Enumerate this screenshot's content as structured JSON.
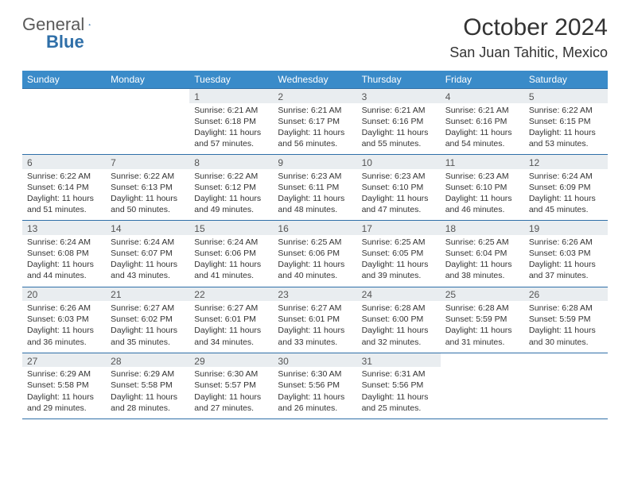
{
  "logo": {
    "general": "General",
    "blue": "Blue"
  },
  "title": "October 2024",
  "location": "San Juan Tahitic, Mexico",
  "colors": {
    "header_bg": "#3a8bc9",
    "rule": "#2f6fa8",
    "numrow_bg": "#e9edf0",
    "text": "#333333"
  },
  "day_names": [
    "Sunday",
    "Monday",
    "Tuesday",
    "Wednesday",
    "Thursday",
    "Friday",
    "Saturday"
  ],
  "weeks": [
    [
      null,
      null,
      {
        "n": "1",
        "sr": "Sunrise: 6:21 AM",
        "ss": "Sunset: 6:18 PM",
        "dl": "Daylight: 11 hours and 57 minutes."
      },
      {
        "n": "2",
        "sr": "Sunrise: 6:21 AM",
        "ss": "Sunset: 6:17 PM",
        "dl": "Daylight: 11 hours and 56 minutes."
      },
      {
        "n": "3",
        "sr": "Sunrise: 6:21 AM",
        "ss": "Sunset: 6:16 PM",
        "dl": "Daylight: 11 hours and 55 minutes."
      },
      {
        "n": "4",
        "sr": "Sunrise: 6:21 AM",
        "ss": "Sunset: 6:16 PM",
        "dl": "Daylight: 11 hours and 54 minutes."
      },
      {
        "n": "5",
        "sr": "Sunrise: 6:22 AM",
        "ss": "Sunset: 6:15 PM",
        "dl": "Daylight: 11 hours and 53 minutes."
      }
    ],
    [
      {
        "n": "6",
        "sr": "Sunrise: 6:22 AM",
        "ss": "Sunset: 6:14 PM",
        "dl": "Daylight: 11 hours and 51 minutes."
      },
      {
        "n": "7",
        "sr": "Sunrise: 6:22 AM",
        "ss": "Sunset: 6:13 PM",
        "dl": "Daylight: 11 hours and 50 minutes."
      },
      {
        "n": "8",
        "sr": "Sunrise: 6:22 AM",
        "ss": "Sunset: 6:12 PM",
        "dl": "Daylight: 11 hours and 49 minutes."
      },
      {
        "n": "9",
        "sr": "Sunrise: 6:23 AM",
        "ss": "Sunset: 6:11 PM",
        "dl": "Daylight: 11 hours and 48 minutes."
      },
      {
        "n": "10",
        "sr": "Sunrise: 6:23 AM",
        "ss": "Sunset: 6:10 PM",
        "dl": "Daylight: 11 hours and 47 minutes."
      },
      {
        "n": "11",
        "sr": "Sunrise: 6:23 AM",
        "ss": "Sunset: 6:10 PM",
        "dl": "Daylight: 11 hours and 46 minutes."
      },
      {
        "n": "12",
        "sr": "Sunrise: 6:24 AM",
        "ss": "Sunset: 6:09 PM",
        "dl": "Daylight: 11 hours and 45 minutes."
      }
    ],
    [
      {
        "n": "13",
        "sr": "Sunrise: 6:24 AM",
        "ss": "Sunset: 6:08 PM",
        "dl": "Daylight: 11 hours and 44 minutes."
      },
      {
        "n": "14",
        "sr": "Sunrise: 6:24 AM",
        "ss": "Sunset: 6:07 PM",
        "dl": "Daylight: 11 hours and 43 minutes."
      },
      {
        "n": "15",
        "sr": "Sunrise: 6:24 AM",
        "ss": "Sunset: 6:06 PM",
        "dl": "Daylight: 11 hours and 41 minutes."
      },
      {
        "n": "16",
        "sr": "Sunrise: 6:25 AM",
        "ss": "Sunset: 6:06 PM",
        "dl": "Daylight: 11 hours and 40 minutes."
      },
      {
        "n": "17",
        "sr": "Sunrise: 6:25 AM",
        "ss": "Sunset: 6:05 PM",
        "dl": "Daylight: 11 hours and 39 minutes."
      },
      {
        "n": "18",
        "sr": "Sunrise: 6:25 AM",
        "ss": "Sunset: 6:04 PM",
        "dl": "Daylight: 11 hours and 38 minutes."
      },
      {
        "n": "19",
        "sr": "Sunrise: 6:26 AM",
        "ss": "Sunset: 6:03 PM",
        "dl": "Daylight: 11 hours and 37 minutes."
      }
    ],
    [
      {
        "n": "20",
        "sr": "Sunrise: 6:26 AM",
        "ss": "Sunset: 6:03 PM",
        "dl": "Daylight: 11 hours and 36 minutes."
      },
      {
        "n": "21",
        "sr": "Sunrise: 6:27 AM",
        "ss": "Sunset: 6:02 PM",
        "dl": "Daylight: 11 hours and 35 minutes."
      },
      {
        "n": "22",
        "sr": "Sunrise: 6:27 AM",
        "ss": "Sunset: 6:01 PM",
        "dl": "Daylight: 11 hours and 34 minutes."
      },
      {
        "n": "23",
        "sr": "Sunrise: 6:27 AM",
        "ss": "Sunset: 6:01 PM",
        "dl": "Daylight: 11 hours and 33 minutes."
      },
      {
        "n": "24",
        "sr": "Sunrise: 6:28 AM",
        "ss": "Sunset: 6:00 PM",
        "dl": "Daylight: 11 hours and 32 minutes."
      },
      {
        "n": "25",
        "sr": "Sunrise: 6:28 AM",
        "ss": "Sunset: 5:59 PM",
        "dl": "Daylight: 11 hours and 31 minutes."
      },
      {
        "n": "26",
        "sr": "Sunrise: 6:28 AM",
        "ss": "Sunset: 5:59 PM",
        "dl": "Daylight: 11 hours and 30 minutes."
      }
    ],
    [
      {
        "n": "27",
        "sr": "Sunrise: 6:29 AM",
        "ss": "Sunset: 5:58 PM",
        "dl": "Daylight: 11 hours and 29 minutes."
      },
      {
        "n": "28",
        "sr": "Sunrise: 6:29 AM",
        "ss": "Sunset: 5:58 PM",
        "dl": "Daylight: 11 hours and 28 minutes."
      },
      {
        "n": "29",
        "sr": "Sunrise: 6:30 AM",
        "ss": "Sunset: 5:57 PM",
        "dl": "Daylight: 11 hours and 27 minutes."
      },
      {
        "n": "30",
        "sr": "Sunrise: 6:30 AM",
        "ss": "Sunset: 5:56 PM",
        "dl": "Daylight: 11 hours and 26 minutes."
      },
      {
        "n": "31",
        "sr": "Sunrise: 6:31 AM",
        "ss": "Sunset: 5:56 PM",
        "dl": "Daylight: 11 hours and 25 minutes."
      },
      null,
      null
    ]
  ]
}
